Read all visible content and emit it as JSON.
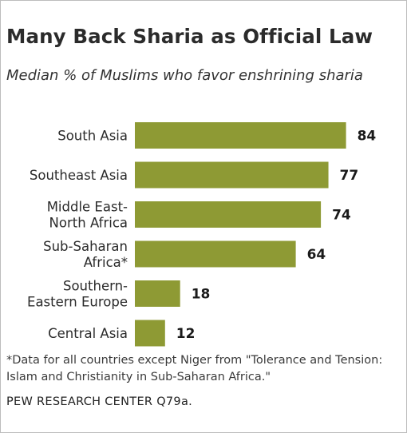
{
  "chart_data": {
    "type": "bar",
    "orientation": "horizontal",
    "title": "Many Back Sharia as Official Law",
    "subtitle": "Median % of Muslims who favor enshrining sharia",
    "categories": [
      [
        "South Asia"
      ],
      [
        "Southeast Asia"
      ],
      [
        "Middle East-",
        "North Africa"
      ],
      [
        "Sub-Saharan",
        "Africa*"
      ],
      [
        "Southern-",
        "Eastern Europe"
      ],
      [
        "Central Asia"
      ]
    ],
    "values": [
      84,
      77,
      74,
      64,
      18,
      12
    ],
    "value_labels": [
      "84",
      "77",
      "74",
      "64",
      "18",
      "12"
    ],
    "bar_color": "#8e9a34",
    "xlim": [
      0,
      100
    ],
    "grid": false,
    "legend": "none"
  },
  "footnote": "*Data for all countries except Niger from \"Tolerance and Tension: Islam and Christianity in Sub-Saharan Africa.\"",
  "source": "PEW RESEARCH CENTER Q79a."
}
